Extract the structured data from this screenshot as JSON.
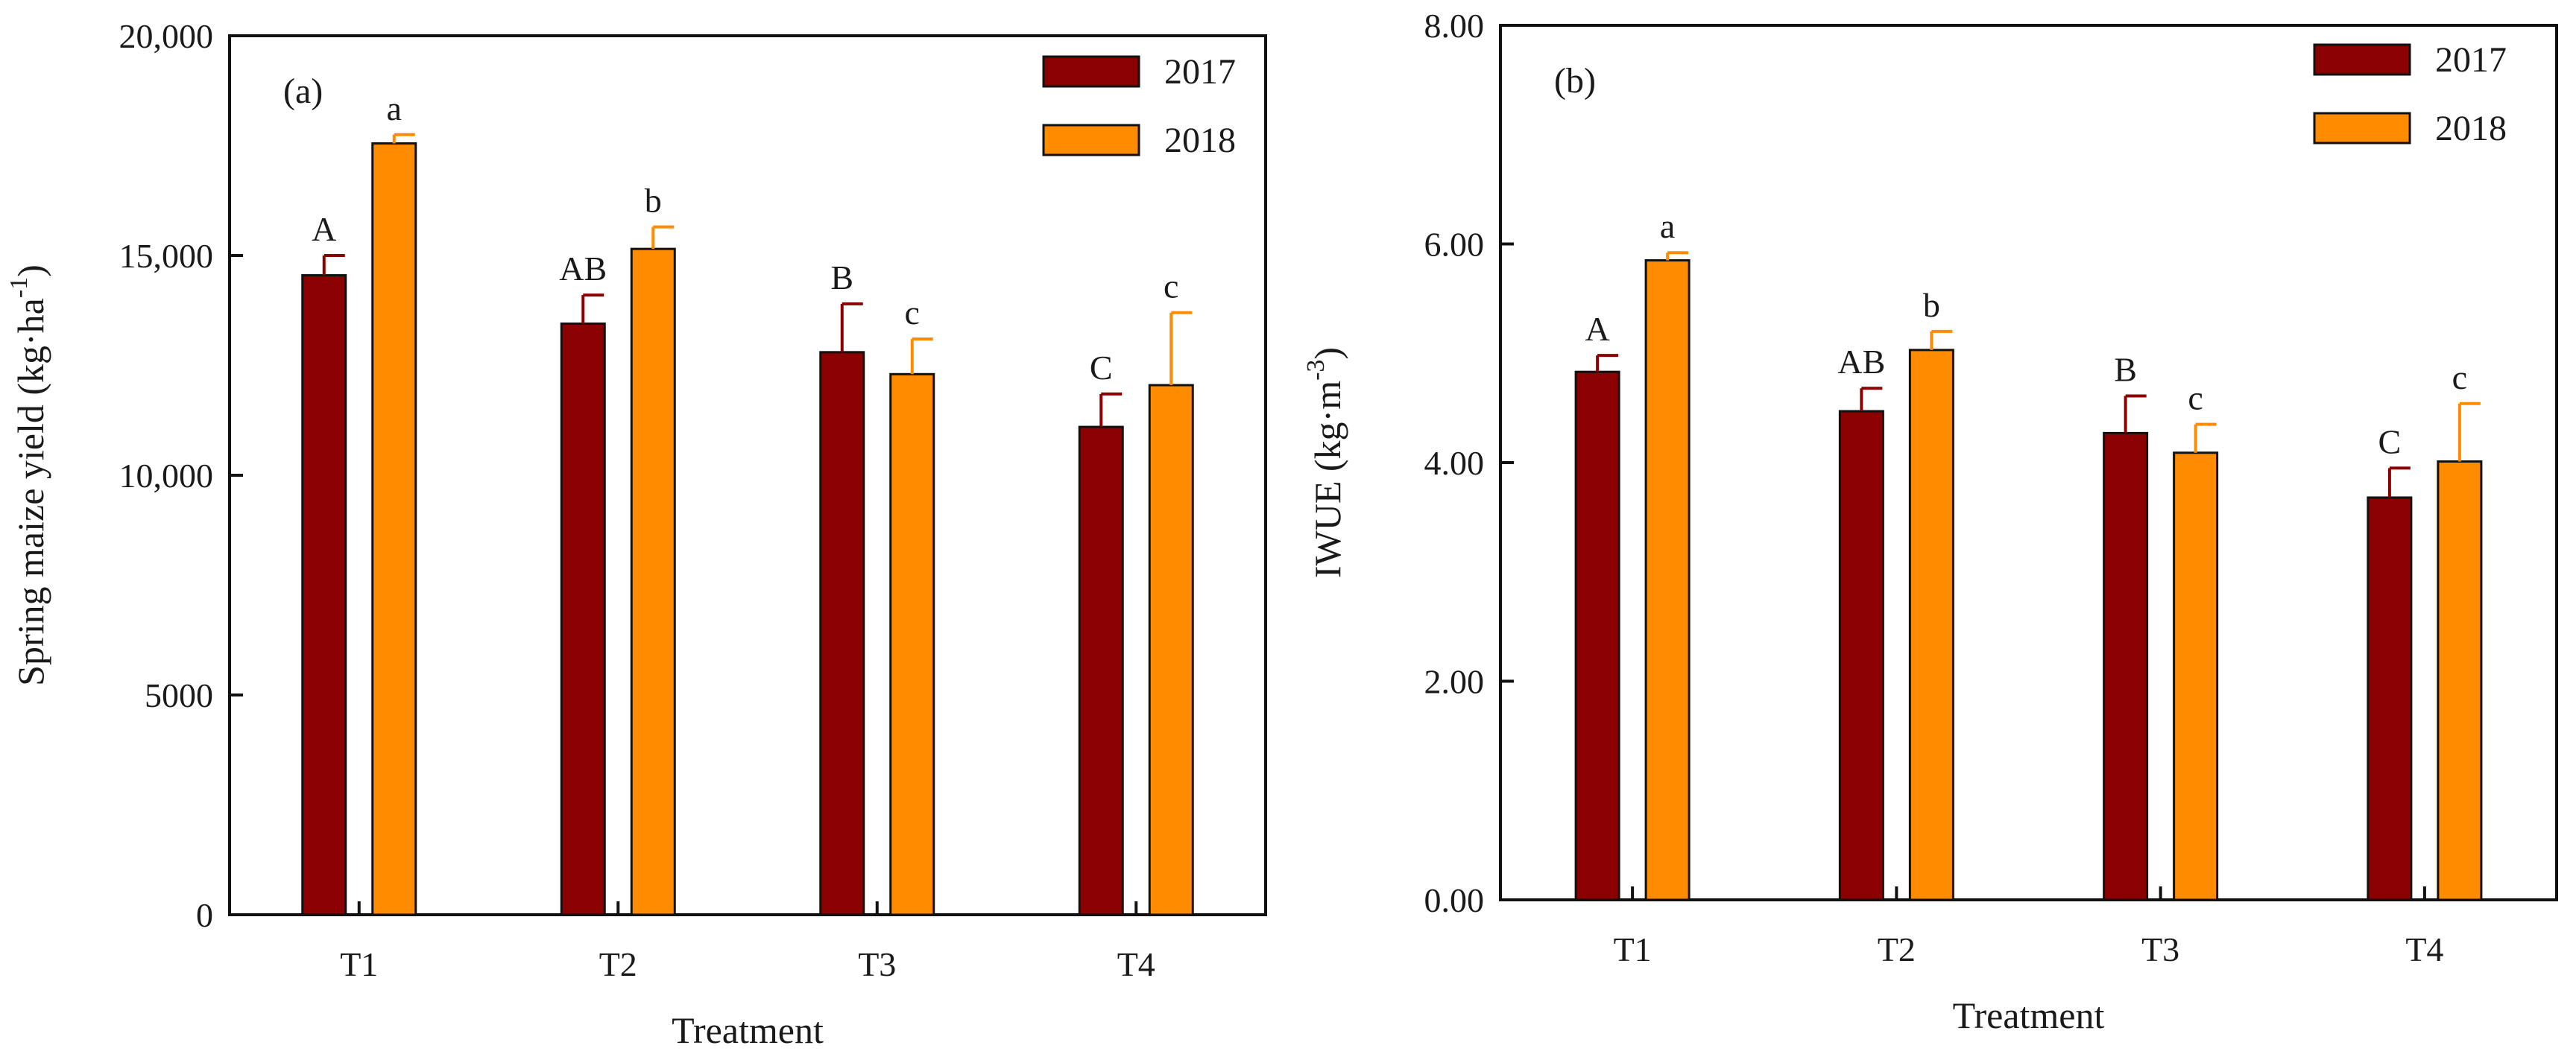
{
  "chart_data": [
    {
      "type": "bar",
      "panel_label": "(a)",
      "xlabel": "Treatment",
      "ylabel": "Spring maize yield (kg·ha",
      "ylabel_superscript": "-1",
      "ylabel_close": ")",
      "categories": [
        "T1",
        "T2",
        "T3",
        "T4"
      ],
      "ylim": [
        0,
        20000
      ],
      "yticks": [
        0,
        5000,
        10000,
        15000,
        20000
      ],
      "ytick_labels": [
        "0",
        "5000",
        "10,000",
        "15,000",
        "20,000"
      ],
      "legend_position": "top-right",
      "series": [
        {
          "name": "2017",
          "color": "#8B0000",
          "values": [
            14550,
            13450,
            12800,
            11100
          ],
          "errors": [
            450,
            650,
            1100,
            750
          ],
          "letters": [
            "A",
            "AB",
            "B",
            "C"
          ]
        },
        {
          "name": "2018",
          "color": "#FF8C00",
          "values": [
            17550,
            15150,
            12300,
            12050
          ],
          "errors": [
            200,
            500,
            800,
            1650
          ],
          "letters": [
            "a",
            "b",
            "c",
            "c"
          ]
        }
      ]
    },
    {
      "type": "bar",
      "panel_label": "(b)",
      "xlabel": "Treatment",
      "ylabel": "IWUE (kg·m",
      "ylabel_superscript": "-3",
      "ylabel_close": ")",
      "categories": [
        "T1",
        "T2",
        "T3",
        "T4"
      ],
      "ylim": [
        0,
        8
      ],
      "yticks": [
        0,
        2,
        4,
        6,
        8
      ],
      "ytick_labels": [
        "0.00",
        "2.00",
        "4.00",
        "6.00",
        "8.00"
      ],
      "legend_position": "top-right",
      "series": [
        {
          "name": "2017",
          "color": "#8B0000",
          "values": [
            4.83,
            4.47,
            4.27,
            3.68
          ],
          "errors": [
            0.15,
            0.21,
            0.34,
            0.27
          ],
          "letters": [
            "A",
            "AB",
            "B",
            "C"
          ]
        },
        {
          "name": "2018",
          "color": "#FF8C00",
          "values": [
            5.85,
            5.03,
            4.09,
            4.01
          ],
          "errors": [
            0.07,
            0.17,
            0.26,
            0.53
          ],
          "letters": [
            "a",
            "b",
            "c",
            "c"
          ]
        }
      ]
    }
  ]
}
